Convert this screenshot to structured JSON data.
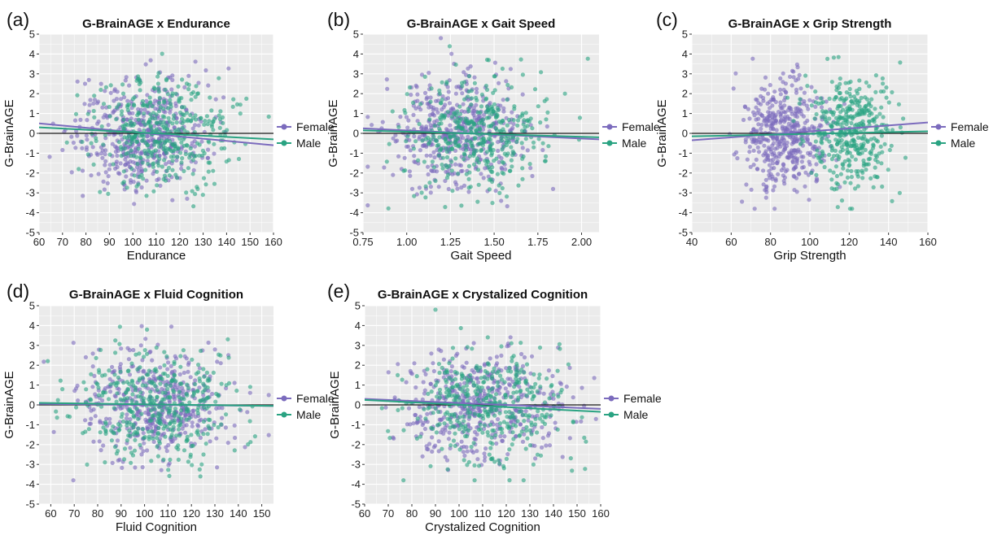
{
  "colors": {
    "female": "#7b6bbd",
    "male": "#2aa382",
    "panel_bg": "#ebebeb",
    "grid": "#ffffff",
    "zero_line": "#1a1a1a"
  },
  "chart_data": [
    {
      "id": "a",
      "type": "scatter",
      "panel_label": "(a)",
      "title": "G-BrainAGE x Endurance",
      "xlabel": "Endurance",
      "ylabel": "G-BrainAGE",
      "xlim": [
        60,
        160
      ],
      "ylim": [
        -5,
        5
      ],
      "xticks": [
        60,
        70,
        80,
        90,
        100,
        110,
        120,
        130,
        140,
        150,
        160
      ],
      "xtick_labels": [
        "60",
        "70",
        "80",
        "90",
        "100",
        "110",
        "120",
        "130",
        "140",
        "150",
        "160"
      ],
      "yticks": [
        -5,
        -4,
        -3,
        -2,
        -1,
        0,
        1,
        2,
        3,
        4,
        5
      ],
      "ytick_labels": [
        "-5",
        "-4",
        "-3",
        "-2",
        "-1",
        "0",
        "1",
        "2",
        "3",
        "4",
        "5"
      ],
      "grid": true,
      "legend": "right",
      "zero_line": 0,
      "point_cloud": {
        "Female": {
          "x_mean": 103,
          "x_sd": 14,
          "y_mean": 0,
          "y_sd": 1.35,
          "n": 460
        },
        "Male": {
          "x_mean": 113,
          "x_sd": 15,
          "y_mean": 0,
          "y_sd": 1.35,
          "n": 400
        }
      },
      "series": [
        {
          "name": "Female",
          "fit_line": {
            "x": [
              60,
              160
            ],
            "y": [
              0.5,
              -0.6
            ]
          }
        },
        {
          "name": "Male",
          "fit_line": {
            "x": [
              60,
              160
            ],
            "y": [
              0.3,
              -0.3
            ]
          }
        }
      ]
    },
    {
      "id": "b",
      "type": "scatter",
      "panel_label": "(b)",
      "title": "G-BrainAGE x Gait Speed",
      "xlabel": "Gait Speed",
      "ylabel": "G-BrainAGE",
      "xlim": [
        0.75,
        2.1
      ],
      "ylim": [
        -5,
        5
      ],
      "xticks": [
        0.75,
        1.0,
        1.25,
        1.5,
        1.75,
        2.0
      ],
      "xtick_labels": [
        "0.75",
        "1.00",
        "1.25",
        "1.50",
        "1.75",
        "2.00"
      ],
      "yticks": [
        -5,
        -4,
        -3,
        -2,
        -1,
        0,
        1,
        2,
        3,
        4,
        5
      ],
      "ytick_labels": [
        "-5",
        "-4",
        "-3",
        "-2",
        "-1",
        "0",
        "1",
        "2",
        "3",
        "4",
        "5"
      ],
      "grid": true,
      "legend": "right",
      "zero_line": 0,
      "point_cloud": {
        "Female": {
          "x_mean": 1.28,
          "x_sd": 0.19,
          "y_mean": 0,
          "y_sd": 1.35,
          "n": 460
        },
        "Male": {
          "x_mean": 1.38,
          "x_sd": 0.2,
          "y_mean": 0,
          "y_sd": 1.35,
          "n": 400
        }
      },
      "series": [
        {
          "name": "Female",
          "fit_line": {
            "x": [
              0.75,
              2.1
            ],
            "y": [
              0.25,
              -0.3
            ]
          }
        },
        {
          "name": "Male",
          "fit_line": {
            "x": [
              0.75,
              2.1
            ],
            "y": [
              0.15,
              -0.2
            ]
          }
        }
      ]
    },
    {
      "id": "c",
      "type": "scatter",
      "panel_label": "(c)",
      "title": "G-BrainAGE x Grip Strength",
      "xlabel": "Grip Strength",
      "ylabel": "G-BrainAGE",
      "xlim": [
        40,
        160
      ],
      "ylim": [
        -5,
        5
      ],
      "xticks": [
        40,
        60,
        80,
        100,
        120,
        140,
        160
      ],
      "xtick_labels": [
        "40",
        "60",
        "80",
        "100",
        "120",
        "140",
        "160"
      ],
      "yticks": [
        -5,
        -4,
        -3,
        -2,
        -1,
        0,
        1,
        2,
        3,
        4,
        5
      ],
      "ytick_labels": [
        "-5",
        "-4",
        "-3",
        "-2",
        "-1",
        "0",
        "1",
        "2",
        "3",
        "4",
        "5"
      ],
      "grid": true,
      "legend": "right",
      "zero_line": 0,
      "point_cloud": {
        "Female": {
          "x_mean": 87,
          "x_sd": 10,
          "y_mean": 0,
          "y_sd": 1.35,
          "n": 460
        },
        "Male": {
          "x_mean": 122,
          "x_sd": 11,
          "y_mean": 0,
          "y_sd": 1.35,
          "n": 400
        }
      },
      "series": [
        {
          "name": "Female",
          "fit_line": {
            "x": [
              40,
              160
            ],
            "y": [
              -0.35,
              0.55
            ]
          }
        },
        {
          "name": "Male",
          "fit_line": {
            "x": [
              40,
              160
            ],
            "y": [
              -0.15,
              0.1
            ]
          }
        }
      ]
    },
    {
      "id": "d",
      "type": "scatter",
      "panel_label": "(d)",
      "title": "G-BrainAGE x Fluid Cognition",
      "xlabel": "Fluid Cognition",
      "ylabel": "G-BrainAGE",
      "xlim": [
        55,
        155
      ],
      "ylim": [
        -5,
        5
      ],
      "xticks": [
        60,
        70,
        80,
        90,
        100,
        110,
        120,
        130,
        140,
        150
      ],
      "xtick_labels": [
        "60",
        "70",
        "80",
        "90",
        "100",
        "110",
        "120",
        "130",
        "140",
        "150"
      ],
      "yticks": [
        -5,
        -4,
        -3,
        -2,
        -1,
        0,
        1,
        2,
        3,
        4,
        5
      ],
      "ytick_labels": [
        "-5",
        "-4",
        "-3",
        "-2",
        "-1",
        "0",
        "1",
        "2",
        "3",
        "4",
        "5"
      ],
      "grid": true,
      "legend": "right",
      "zero_line": 0,
      "point_cloud": {
        "Female": {
          "x_mean": 105,
          "x_sd": 16,
          "y_mean": 0,
          "y_sd": 1.35,
          "n": 460
        },
        "Male": {
          "x_mean": 106,
          "x_sd": 16,
          "y_mean": 0,
          "y_sd": 1.35,
          "n": 400
        }
      },
      "series": [
        {
          "name": "Female",
          "fit_line": {
            "x": [
              55,
              155
            ],
            "y": [
              0.05,
              -0.05
            ]
          }
        },
        {
          "name": "Male",
          "fit_line": {
            "x": [
              55,
              155
            ],
            "y": [
              0.1,
              -0.05
            ]
          }
        }
      ]
    },
    {
      "id": "e",
      "type": "scatter",
      "panel_label": "(e)",
      "title": "G-BrainAGE x Crystalized Cognition",
      "xlabel": "Crystalized Cognition",
      "ylabel": "G-BrainAGE",
      "xlim": [
        60,
        160
      ],
      "ylim": [
        -5,
        5
      ],
      "xticks": [
        60,
        70,
        80,
        90,
        100,
        110,
        120,
        130,
        140,
        150,
        160
      ],
      "xtick_labels": [
        "60",
        "70",
        "80",
        "90",
        "100",
        "110",
        "120",
        "130",
        "140",
        "150",
        "160"
      ],
      "yticks": [
        -5,
        -4,
        -3,
        -2,
        -1,
        0,
        1,
        2,
        3,
        4,
        5
      ],
      "ytick_labels": [
        "-5",
        "-4",
        "-3",
        "-2",
        "-1",
        "0",
        "1",
        "2",
        "3",
        "4",
        "5"
      ],
      "grid": true,
      "legend": "right",
      "zero_line": 0,
      "point_cloud": {
        "Female": {
          "x_mean": 108,
          "x_sd": 16,
          "y_mean": 0,
          "y_sd": 1.35,
          "n": 460
        },
        "Male": {
          "x_mean": 112,
          "x_sd": 16,
          "y_mean": 0,
          "y_sd": 1.35,
          "n": 400
        }
      },
      "series": [
        {
          "name": "Female",
          "fit_line": {
            "x": [
              60,
              160
            ],
            "y": [
              0.3,
              -0.2
            ]
          }
        },
        {
          "name": "Male",
          "fit_line": {
            "x": [
              60,
              160
            ],
            "y": [
              0.25,
              -0.35
            ]
          }
        }
      ]
    }
  ]
}
